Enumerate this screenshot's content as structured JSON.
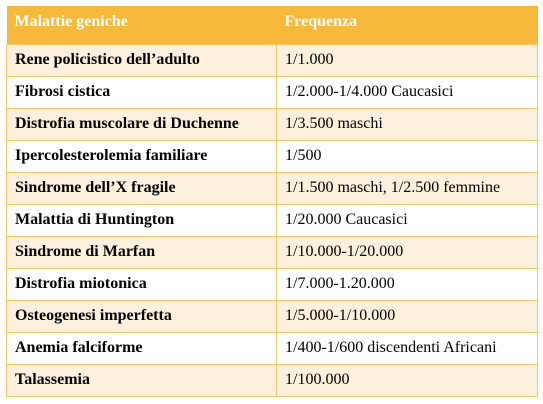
{
  "colors": {
    "header_background": "#f7b93b",
    "header_text": "#ffffff",
    "band_odd": "#fdf1dd",
    "band_even": "#ffffff",
    "border": "#f6c66a"
  },
  "table": {
    "headers": [
      "Malattie geniche",
      "Frequenza"
    ],
    "rows": [
      {
        "disease": "Rene policistico dell’adulto",
        "frequency": "1/1.000"
      },
      {
        "disease": "Fibrosi cistica",
        "frequency": "1/2.000-1/4.000 Caucasici"
      },
      {
        "disease": "Distrofia muscolare di Duchenne",
        "frequency": "1/3.500 maschi"
      },
      {
        "disease": "Ipercolesterolemia familiare",
        "frequency": "1/500"
      },
      {
        "disease": "Sindrome dell’X fragile",
        "frequency": "1/1.500 maschi, 1/2.500 femmine"
      },
      {
        "disease": "Malattia di Huntington",
        "frequency": "1/20.000 Caucasici"
      },
      {
        "disease": "Sindrome di Marfan",
        "frequency": "1/10.000-1/20.000"
      },
      {
        "disease": "Distrofia miotonica",
        "frequency": "1/7.000-1.20.000"
      },
      {
        "disease": "Osteogenesi imperfetta",
        "frequency": "1/5.000-1/10.000"
      },
      {
        "disease": "Anemia falciforme",
        "frequency": "1/400-1/600 discendenti Africani"
      },
      {
        "disease": "Talassemia",
        "frequency": "1/100.000"
      }
    ]
  }
}
